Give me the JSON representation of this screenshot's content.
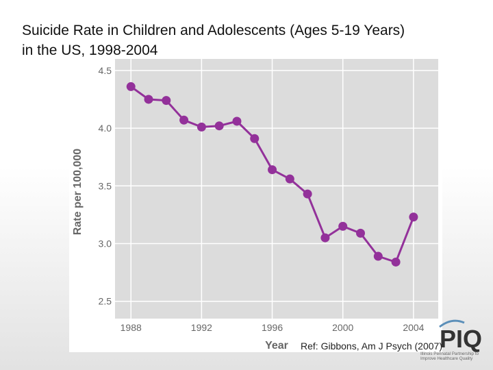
{
  "slide": {
    "title_line1": "Suicide Rate in Children and Adolescents (Ages 5-19 Years)",
    "title_line2": "in the US, 1998-2004",
    "reference": "Ref: Gibbons, Am J Psych (2007)"
  },
  "logo": {
    "text": "PIQ",
    "tagline_line1": "Illinois Perinatal Partnership to",
    "tagline_line2": "Improve Healthcare Quality"
  },
  "colors": {
    "series": "#93319a",
    "plot_background": "#dcdcdc",
    "grid": "#ffffff",
    "axis_text": "#666666",
    "logo_blue": "#5b8fb9"
  },
  "chart_data": {
    "type": "line",
    "title": "",
    "xlabel": "Year",
    "ylabel": "Rate per 100,000",
    "xlim": [
      1987.1,
      2005.4
    ],
    "ylim": [
      2.35,
      4.6
    ],
    "xticks": [
      1988,
      1992,
      1996,
      2000,
      2004
    ],
    "yticks": [
      2.5,
      3.0,
      3.5,
      4.0,
      4.5
    ],
    "ytick_labels": [
      "2.5",
      "3.0",
      "3.5",
      "4.0",
      "4.5"
    ],
    "grid": true,
    "series": [
      {
        "name": "Suicide rate",
        "x": [
          1988,
          1989,
          1990,
          1991,
          1992,
          1993,
          1994,
          1995,
          1996,
          1997,
          1998,
          1999,
          2000,
          2001,
          2002,
          2003,
          2004
        ],
        "values": [
          4.36,
          4.25,
          4.24,
          4.07,
          4.01,
          4.02,
          4.06,
          3.91,
          3.64,
          3.56,
          3.43,
          3.05,
          3.15,
          3.09,
          2.89,
          2.84,
          3.23
        ]
      }
    ]
  }
}
